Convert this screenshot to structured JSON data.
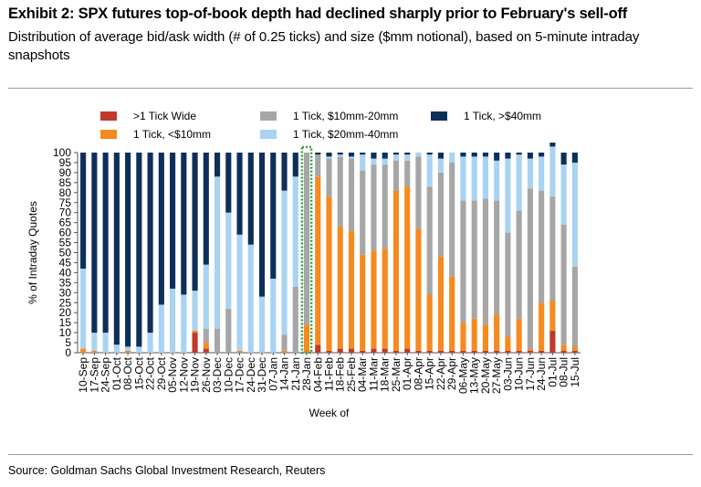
{
  "header": {
    "title": "Exhibit 2: SPX futures top-of-book depth had declined sharply prior to February's sell-off",
    "subtitle": "Distribution of average bid/ask width (# of 0.25 ticks) and size ($mm notional), based on 5-minute intraday snapshots"
  },
  "footer": {
    "source": "Source: Goldman Sachs Global Investment Research, Reuters"
  },
  "colors": {
    "wide": "#c0392b",
    "lt10": "#f58a1f",
    "b10_20": "#a6a6a6",
    "b20_40": "#a9d3f2",
    "gt40": "#0d2f5a",
    "highlight": "#2e9c3a"
  },
  "chart_data": {
    "type": "bar",
    "stacked": true,
    "xlabel": "Week of",
    "ylabel": "% of Intraday Quotes",
    "ylim": [
      0,
      100
    ],
    "yticks": [
      0,
      5,
      10,
      15,
      20,
      25,
      30,
      35,
      40,
      45,
      50,
      55,
      60,
      65,
      70,
      75,
      80,
      85,
      90,
      95,
      100
    ],
    "legend_position": "top",
    "highlight_category": "28-Jan",
    "categories": [
      "10-Sep",
      "17-Sep",
      "24-Sep",
      "01-Oct",
      "08-Oct",
      "15-Oct",
      "22-Oct",
      "29-Oct",
      "05-Nov",
      "12-Nov",
      "19-Nov",
      "26-Nov",
      "03-Dec",
      "10-Dec",
      "17-Dec",
      "24-Dec",
      "31-Dec",
      "07-Jan",
      "14-Jan",
      "21-Jan",
      "28-Jan",
      "04-Feb",
      "11-Feb",
      "18-Feb",
      "25-Feb",
      "04-Mar",
      "11-Mar",
      "18-Mar",
      "25-Mar",
      "01-Apr",
      "08-Apr",
      "15-Apr",
      "22-Apr",
      "29-Apr",
      "06-May",
      "13-May",
      "20-May",
      "27-May",
      "03-Jun",
      "10-Jun",
      "17-Jun",
      "24-Jun",
      "01-Jul",
      "08-Jul",
      "15-Jul"
    ],
    "tick_labels": [
      "10-Sep",
      "17-Sep",
      "24-Sep",
      "01-Oct",
      "08-Oct",
      "15-Oct",
      "22-Oct",
      "29-Oct",
      "05-Nov",
      "12-Nov",
      "19-Nov",
      "26-Nov",
      "03-Dec",
      "10-Dec",
      "17-Dec",
      "24-Dec",
      "31-Dec",
      "07-Jan",
      "14-Jan",
      "21-Jan",
      "28-Jan",
      "04-Feb",
      "11-Feb",
      "18-Feb",
      "25-Feb",
      "04-Mar",
      "11-Mar",
      "18-Mar",
      "25-Mar",
      "01-Apr",
      "08-Apr",
      "15-Apr",
      "22-Apr",
      "29-Apr",
      "06-May",
      "13-May",
      "20-May",
      "27-May",
      "03-Jun",
      "10-Jun",
      "17-Jun",
      "24-Jun",
      "01-Jul",
      "08-Jul",
      "15-Jul"
    ],
    "series": [
      {
        "name": ">1 Tick Wide",
        "color_key": "wide",
        "values": [
          0,
          0,
          0,
          0,
          0,
          0,
          0,
          0,
          0,
          0,
          10,
          2,
          0,
          0,
          0,
          0,
          0,
          0,
          0,
          0,
          0,
          4,
          1,
          2,
          2,
          1,
          2,
          2,
          1,
          2,
          1,
          1,
          1,
          1,
          1,
          1,
          1,
          1,
          1,
          1,
          1,
          1,
          11,
          1,
          1
        ]
      },
      {
        "name": "1 Tick, <$10mm",
        "color_key": "lt10",
        "values": [
          2,
          1,
          0,
          0,
          1,
          0,
          0,
          0,
          0,
          0,
          1,
          3,
          0,
          0,
          1,
          0,
          0,
          0,
          1,
          0,
          14,
          84,
          77,
          61,
          59,
          48,
          49,
          50,
          80,
          81,
          61,
          28,
          47,
          37,
          14,
          16,
          13,
          18,
          7,
          16,
          1,
          24,
          15,
          3,
          2
        ]
      },
      {
        "name": "1 Tick, $10mm-20mm",
        "color_key": "b10_20",
        "values": [
          0,
          0,
          0,
          0,
          0,
          0,
          0,
          0,
          0,
          0,
          0,
          7,
          12,
          22,
          0,
          0,
          0,
          0,
          8,
          33,
          86,
          11,
          19,
          35,
          36,
          42,
          43,
          42,
          15,
          13,
          36,
          54,
          42,
          57,
          61,
          59,
          63,
          57,
          52,
          54,
          80,
          56,
          52,
          60,
          40
        ]
      },
      {
        "name": "1 Tick, $20mm-40mm",
        "color_key": "b20_40",
        "values": [
          40,
          9,
          10,
          4,
          2,
          3,
          10,
          24,
          32,
          29,
          20,
          32,
          76,
          48,
          58,
          54,
          28,
          37,
          72,
          55,
          0,
          0,
          1,
          1,
          1,
          8,
          3,
          3,
          3,
          3,
          2,
          16,
          7,
          5,
          22,
          22,
          21,
          20,
          37,
          28,
          15,
          17,
          25,
          30,
          52
        ]
      },
      {
        "name": "1 Tick, >$40mm",
        "color_key": "gt40",
        "values": [
          58,
          90,
          90,
          96,
          97,
          97,
          90,
          76,
          68,
          71,
          69,
          56,
          12,
          30,
          41,
          46,
          72,
          63,
          19,
          12,
          0,
          1,
          2,
          1,
          2,
          1,
          3,
          3,
          1,
          1,
          0,
          1,
          3,
          0,
          2,
          2,
          2,
          4,
          3,
          1,
          3,
          2,
          2,
          6,
          5
        ]
      }
    ]
  }
}
